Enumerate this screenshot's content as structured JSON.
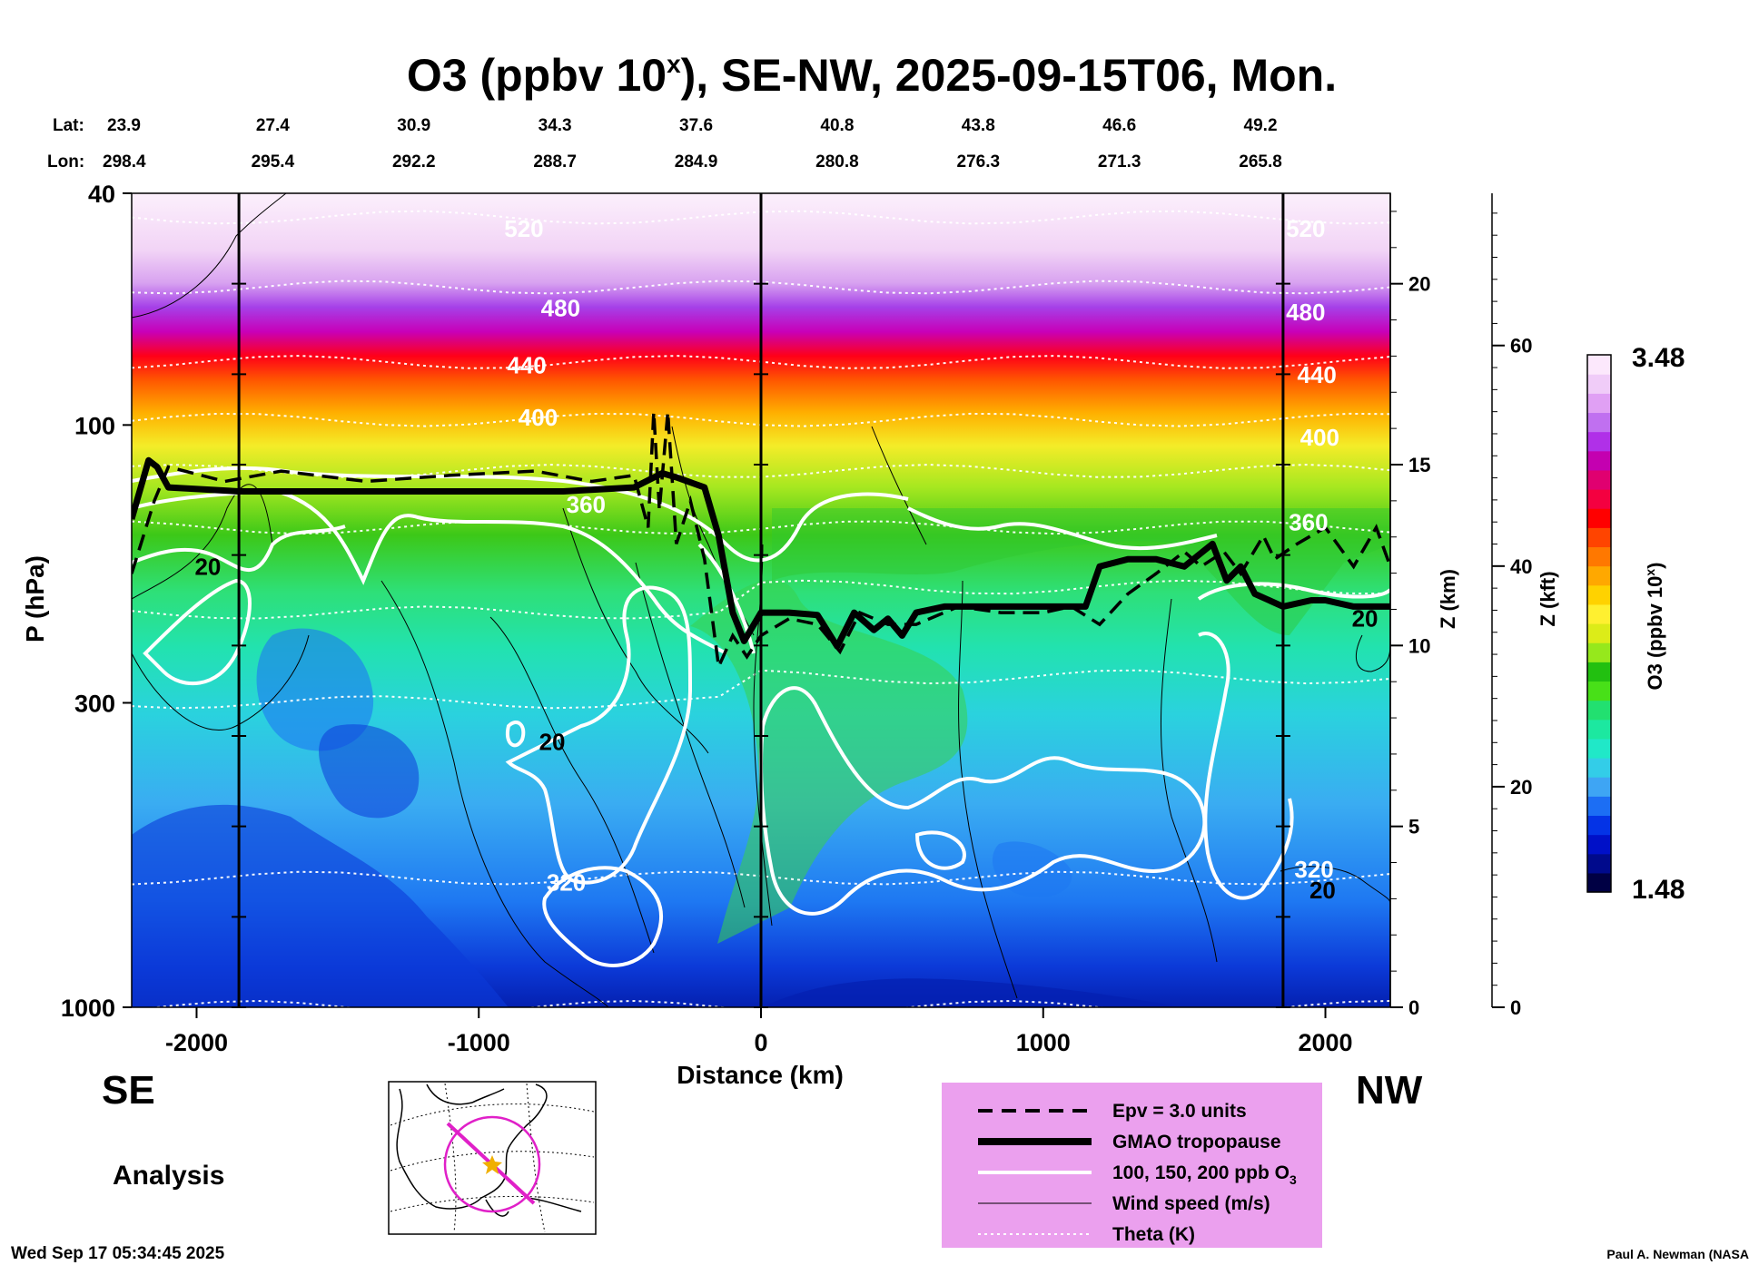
{
  "chart_data": {
    "type": "heatmap",
    "title": "O3 (ppbv 10",
    "title_sup": "x",
    "title_tail": "), SE-NW, 2025-09-15T06, Mon.",
    "xlabel": "Distance (km)",
    "ylabel": "P (hPa)",
    "y2label": "Z (km)",
    "y3label": "Z (kft)",
    "xlim": [
      -2230,
      2230
    ],
    "ylim_hpa": [
      1000,
      40
    ],
    "x_ticks": [
      "-2000",
      "-1000",
      "0",
      "1000",
      "2000"
    ],
    "x_tick_values": [
      -2000,
      -1000,
      0,
      1000,
      2000
    ],
    "p_ticks": [
      "40",
      "100",
      "300",
      "1000"
    ],
    "p_tick_values": [
      40,
      100,
      300,
      1000
    ],
    "z_km_ticks": [
      "0",
      "5",
      "10",
      "15",
      "20"
    ],
    "z_km_values": [
      0,
      5,
      10,
      15,
      20
    ],
    "z_kft_ticks": [
      "0",
      "20",
      "40",
      "60"
    ],
    "z_kft_values": [
      0,
      20,
      40,
      60
    ],
    "lat_label": "Lat:",
    "lon_label": "Lon:",
    "lat": [
      "23.9",
      "27.4",
      "30.9",
      "34.3",
      "37.6",
      "40.8",
      "43.8",
      "46.6",
      "49.2"
    ],
    "lon": [
      "298.4",
      "295.4",
      "292.2",
      "288.7",
      "284.9",
      "280.8",
      "276.3",
      "271.3",
      "265.8"
    ],
    "label_distance_km": [
      -2230,
      -1730,
      -1230,
      -730,
      -230,
      270,
      770,
      1270,
      1770
    ],
    "vertical_line_km": [
      -1850,
      0,
      1850
    ],
    "left_end": "SE",
    "right_end": "NW",
    "colorbar": {
      "label": "O3 (ppbv 10",
      "label_sup": "x",
      "label_tail": ")",
      "max": "3.48",
      "min": "1.48",
      "max_value": 3.48,
      "min_value": 1.48
    },
    "theta_labels": [
      {
        "text": "520",
        "x": -840,
        "p": 46
      },
      {
        "text": "480",
        "x": -710,
        "p": 63
      },
      {
        "text": "440",
        "x": -830,
        "p": 79
      },
      {
        "text": "400",
        "x": -790,
        "p": 97
      },
      {
        "text": "360",
        "x": -620,
        "p": 137
      },
      {
        "text": "320",
        "x": -690,
        "p": 610
      },
      {
        "text": "520",
        "x": 1930,
        "p": 46
      },
      {
        "text": "480",
        "x": 1930,
        "p": 64
      },
      {
        "text": "440",
        "x": 1970,
        "p": 82
      },
      {
        "text": "400",
        "x": 1980,
        "p": 105
      },
      {
        "text": "360",
        "x": 1940,
        "p": 147
      },
      {
        "text": "320",
        "x": 1960,
        "p": 580
      }
    ],
    "wind_labels": [
      {
        "text": "20",
        "x": -1960,
        "p": 175
      },
      {
        "text": "20",
        "x": -740,
        "p": 350
      },
      {
        "text": "20",
        "x": 2140,
        "p": 215
      },
      {
        "text": "20",
        "x": 1990,
        "p": 630
      }
    ],
    "tropopause": {
      "x": [
        -2230,
        -2170,
        -2140,
        -2100,
        -1850,
        -1500,
        -1000,
        -700,
        -450,
        -350,
        -300,
        -200,
        -150,
        -100,
        -60,
        0,
        100,
        200,
        270,
        330,
        400,
        450,
        500,
        550,
        650,
        800,
        1000,
        1150,
        1200,
        1300,
        1400,
        1500,
        1600,
        1650,
        1700,
        1750,
        1850,
        1950,
        2000,
        2100,
        2230
      ],
      "p": [
        145,
        115,
        118,
        128,
        130,
        130,
        130,
        130,
        128,
        121,
        123,
        128,
        155,
        210,
        235,
        210,
        210,
        212,
        240,
        210,
        225,
        215,
        230,
        210,
        205,
        205,
        205,
        205,
        175,
        170,
        170,
        175,
        160,
        185,
        175,
        195,
        205,
        200,
        200,
        205,
        205
      ]
    },
    "epv": {
      "x": [
        -2230,
        -2150,
        -2100,
        -1900,
        -1700,
        -1400,
        -1100,
        -800,
        -600,
        -450,
        -400,
        -380,
        -360,
        -330,
        -300,
        -250,
        -200,
        -150,
        -100,
        -50,
        0,
        100,
        200,
        280,
        350,
        450,
        550,
        700,
        850,
        1000,
        1100,
        1200,
        1300,
        1400,
        1500,
        1560,
        1640,
        1700,
        1780,
        1820,
        1900,
        2000,
        2100,
        2180,
        2230
      ],
      "p": [
        180,
        135,
        118,
        125,
        120,
        125,
        122,
        120,
        125,
        122,
        150,
        95,
        140,
        95,
        160,
        135,
        170,
        260,
        230,
        250,
        230,
        215,
        220,
        245,
        210,
        220,
        220,
        205,
        210,
        210,
        205,
        220,
        195,
        180,
        165,
        175,
        165,
        180,
        155,
        170,
        160,
        150,
        175,
        150,
        175
      ]
    },
    "o3_contours_ppb": [
      "100",
      "150",
      "200"
    ],
    "legend": [
      {
        "style": "dashed",
        "label": "Epv = 3.0 units",
        "color": "#000000"
      },
      {
        "style": "thick",
        "label": "GMAO tropopause",
        "color": "#000000"
      },
      {
        "style": "white",
        "label": "100, 150, 200 ppb O",
        "sub": "3",
        "color": "#ffffff"
      },
      {
        "style": "thin",
        "label": "Wind speed (m/s)",
        "color": "#000000"
      },
      {
        "style": "dotted",
        "label": "Theta (K)",
        "color": "#ffffff"
      }
    ],
    "legend_bg": "#eba0ee",
    "palette": [
      "#000044",
      "#000a8c",
      "#0010c8",
      "#0433e6",
      "#1c6ef4",
      "#3ea5f4",
      "#33cde8",
      "#20e8c8",
      "#1ce8a0",
      "#22e070",
      "#48e018",
      "#22c010",
      "#96e81c",
      "#dcec18",
      "#fff030",
      "#ffd200",
      "#ffa800",
      "#ff7800",
      "#ff4400",
      "#ff0000",
      "#f40040",
      "#e00070",
      "#c400b0",
      "#b030e8",
      "#c070f0",
      "#e0a0f4",
      "#f0ccf8",
      "#fce8fc"
    ]
  },
  "panel_text": "Analysis",
  "timestamp": "Wed Sep 17 05:34:45 2025",
  "credit": "Paul A. Newman (NASA"
}
